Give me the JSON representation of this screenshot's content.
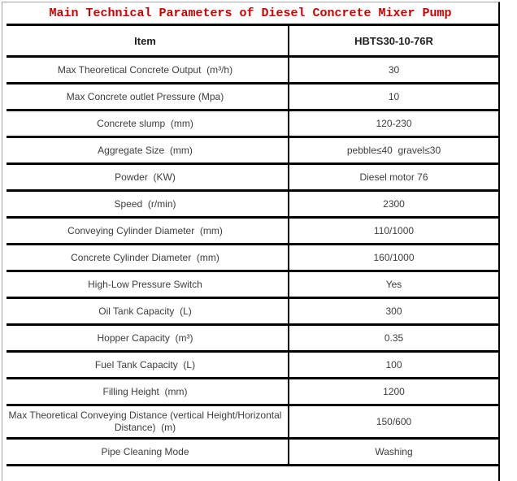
{
  "title": "Main Technical Parameters of Diesel Concrete Mixer Pump",
  "colors": {
    "title_red": "#cc0000",
    "border_dark": "#000000",
    "border_light": "#a6a6a6",
    "text_dark": "#1f1f1f",
    "text_body": "#3d3d3d"
  },
  "table": {
    "header": {
      "item_label": "Item",
      "model_value": "HBTS30-10-76R"
    },
    "rows": [
      {
        "label": "Max Theoretical Concrete Output  (m³/h)",
        "value": "30"
      },
      {
        "label": "Max Concrete outlet Pressure (Mpa)",
        "value": "10"
      },
      {
        "label": "Concrete slump  (mm)",
        "value": "120-230"
      },
      {
        "label": "Aggregate Size  (mm)",
        "value": "pebble≤40  gravel≤30"
      },
      {
        "label": "Powder  (KW)",
        "value": "Diesel motor 76"
      },
      {
        "label": "Speed  (r/min)",
        "value": "2300"
      },
      {
        "label": "Conveying Cylinder Diameter  (mm)",
        "value": "110/1000"
      },
      {
        "label": "Concrete Cylinder Diameter  (mm)",
        "value": "160/1000"
      },
      {
        "label": "High-Low Pressure Switch",
        "value": "Yes"
      },
      {
        "label": "Oil Tank Capacity  (L)",
        "value": "300"
      },
      {
        "label": "Hopper Capacity  (m³)",
        "value": "0.35"
      },
      {
        "label": "Fuel Tank Capacity  (L)",
        "value": "100"
      },
      {
        "label": "Filling Height  (mm)",
        "value": "1200"
      },
      {
        "label": "Max Theoretical Conveying Distance (vertical Height/Horizontal Distance)  (m)",
        "value": "150/600"
      },
      {
        "label": "Pipe Cleaning Mode",
        "value": "Washing"
      }
    ]
  }
}
